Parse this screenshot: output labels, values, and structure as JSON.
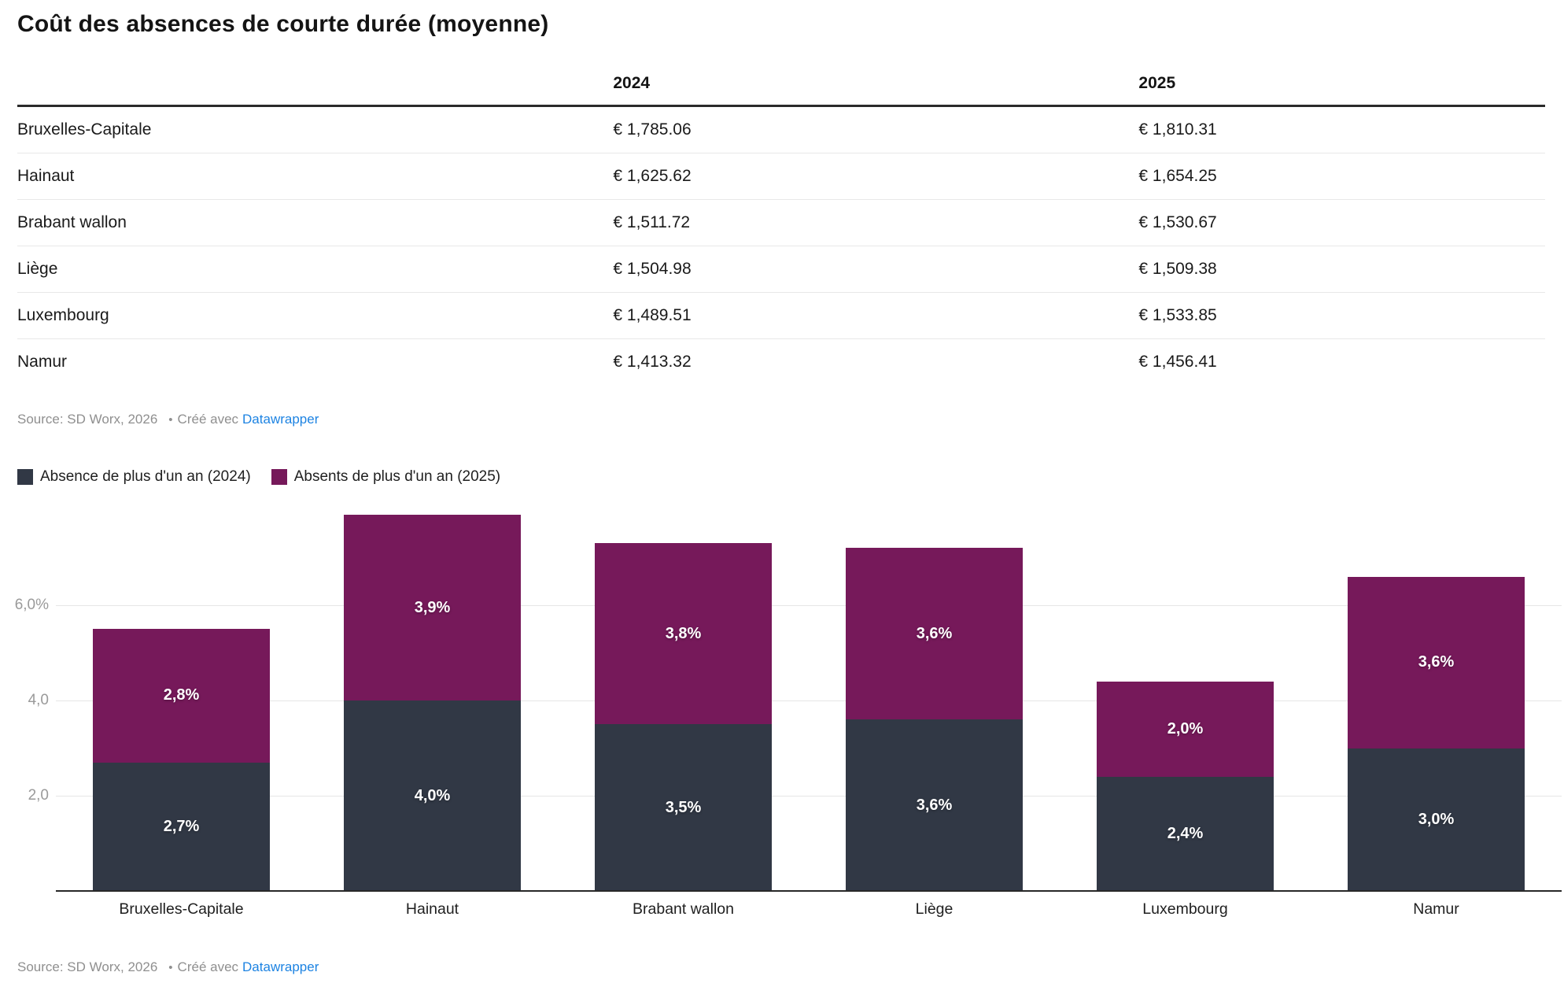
{
  "title": "Coût des absences de courte durée (moyenne)",
  "table": {
    "columns": [
      "",
      "2024",
      "2025"
    ],
    "rows": [
      {
        "label": "Bruxelles-Capitale",
        "y2024": "€ 1,785.06",
        "y2025": "€ 1,810.31"
      },
      {
        "label": "Hainaut",
        "y2024": "€ 1,625.62",
        "y2025": "€ 1,654.25"
      },
      {
        "label": "Brabant wallon",
        "y2024": "€ 1,511.72",
        "y2025": "€ 1,530.67"
      },
      {
        "label": "Liège",
        "y2024": "€ 1,504.98",
        "y2025": "€ 1,509.38"
      },
      {
        "label": "Luxembourg",
        "y2024": "€ 1,489.51",
        "y2025": "€ 1,533.85"
      },
      {
        "label": "Namur",
        "y2024": "€ 1,413.32",
        "y2025": "€ 1,456.41"
      }
    ]
  },
  "source": {
    "label": "Source: SD Worx, 2026",
    "bullet": "•",
    "created_with": "Créé avec",
    "link_text": "Datawrapper"
  },
  "colors": {
    "bar_2024": "#313845",
    "bar_2025": "#76195a",
    "link": "#1d83e2"
  },
  "legend": [
    {
      "label": "Absence de plus d'un an (2024)",
      "color": "#313845"
    },
    {
      "label": "Absents de plus d'un an (2025)",
      "color": "#76195a"
    }
  ],
  "chart_data": {
    "type": "bar",
    "stacked": true,
    "title": "",
    "xlabel": "",
    "ylabel": "",
    "categories": [
      "Bruxelles-Capitale",
      "Hainaut",
      "Brabant wallon",
      "Liège",
      "Luxembourg",
      "Namur"
    ],
    "series": [
      {
        "name": "Absence de plus d'un an (2024)",
        "color": "#313845",
        "values": [
          2.7,
          4.0,
          3.5,
          3.6,
          2.4,
          3.0
        ],
        "labels": [
          "2,7%",
          "4,0%",
          "3,5%",
          "3,6%",
          "2,4%",
          "3,0%"
        ]
      },
      {
        "name": "Absents de plus d'un an (2025)",
        "color": "#76195a",
        "values": [
          2.8,
          3.9,
          3.8,
          3.6,
          2.0,
          3.6
        ],
        "labels": [
          "2,8%",
          "3,9%",
          "3,8%",
          "3,6%",
          "2,0%",
          "3,6%"
        ]
      }
    ],
    "y_axis": {
      "ticks": [
        {
          "value": 2.0,
          "label": "2,0"
        },
        {
          "value": 4.0,
          "label": "4,0"
        },
        {
          "value": 6.0,
          "label": "6,0%"
        }
      ],
      "ylim": [
        0,
        8.3
      ],
      "grid": "horizontal"
    },
    "legend_position": "top-left"
  }
}
